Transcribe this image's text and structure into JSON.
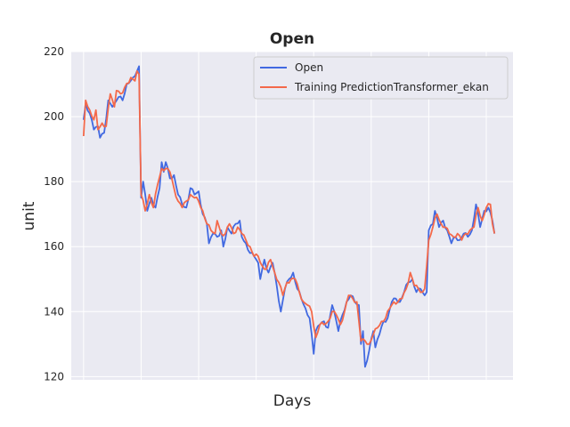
{
  "chart_data": {
    "type": "line",
    "title": "Open",
    "xlabel": "Days",
    "ylabel": "unit",
    "ylim": [
      119,
      220
    ],
    "xlim": [
      -6,
      209
    ],
    "yticks": [
      120,
      140,
      160,
      180,
      200,
      220
    ],
    "ytick_labels": [
      "120",
      "140",
      "160",
      "180",
      "200",
      "220"
    ],
    "xticks": [
      0,
      28,
      56,
      84,
      112,
      140,
      168,
      196
    ],
    "grid": true,
    "legend_position": "upper right",
    "series": [
      {
        "name": "Open",
        "color": "#4169e1",
        "anchors": [
          [
            0,
            199
          ],
          [
            1,
            204
          ],
          [
            3,
            201
          ],
          [
            5,
            196
          ],
          [
            7,
            197
          ],
          [
            8,
            193.5
          ],
          [
            10,
            195
          ],
          [
            12,
            205
          ],
          [
            14,
            203
          ],
          [
            15,
            204
          ],
          [
            17,
            206
          ],
          [
            19,
            205
          ],
          [
            21,
            210
          ],
          [
            24,
            212
          ],
          [
            26,
            214
          ],
          [
            27,
            215.5
          ],
          [
            28,
            175
          ],
          [
            29,
            180
          ],
          [
            31,
            171
          ],
          [
            33,
            175
          ],
          [
            35,
            172
          ],
          [
            37,
            178
          ],
          [
            38,
            186
          ],
          [
            39,
            183
          ],
          [
            40,
            186
          ],
          [
            42,
            181
          ],
          [
            44,
            182
          ],
          [
            46,
            176
          ],
          [
            48,
            173
          ],
          [
            50,
            172
          ],
          [
            52,
            178
          ],
          [
            54,
            176
          ],
          [
            56,
            177
          ],
          [
            58,
            170
          ],
          [
            60,
            167
          ],
          [
            61,
            161
          ],
          [
            63,
            164
          ],
          [
            65,
            163
          ],
          [
            67,
            165
          ],
          [
            68,
            160
          ],
          [
            70,
            166
          ],
          [
            72,
            164
          ],
          [
            74,
            167
          ],
          [
            76,
            168
          ],
          [
            77,
            163
          ],
          [
            79,
            161
          ],
          [
            81,
            158
          ],
          [
            83,
            157
          ],
          [
            85,
            155
          ],
          [
            86,
            150
          ],
          [
            88,
            156
          ],
          [
            90,
            152
          ],
          [
            92,
            155
          ],
          [
            94,
            148
          ],
          [
            96,
            140
          ],
          [
            98,
            147
          ],
          [
            100,
            150
          ],
          [
            102,
            152
          ],
          [
            104,
            147
          ],
          [
            106,
            144
          ],
          [
            108,
            141
          ],
          [
            110,
            138
          ],
          [
            112,
            127
          ],
          [
            113,
            134
          ],
          [
            115,
            136
          ],
          [
            117,
            137
          ],
          [
            119,
            135
          ],
          [
            121,
            142
          ],
          [
            122,
            140
          ],
          [
            124,
            134
          ],
          [
            126,
            139
          ],
          [
            128,
            143
          ],
          [
            130,
            145
          ],
          [
            132,
            143
          ],
          [
            134,
            142
          ],
          [
            135,
            130
          ],
          [
            136,
            134
          ],
          [
            137,
            123
          ],
          [
            139,
            128
          ],
          [
            141,
            134
          ],
          [
            142,
            129
          ],
          [
            144,
            133
          ],
          [
            146,
            137
          ],
          [
            148,
            138
          ],
          [
            150,
            143
          ],
          [
            152,
            144
          ],
          [
            154,
            143
          ],
          [
            156,
            146
          ],
          [
            158,
            149
          ],
          [
            160,
            150
          ],
          [
            162,
            146
          ],
          [
            164,
            147
          ],
          [
            166,
            145
          ],
          [
            167,
            146
          ],
          [
            168,
            165
          ],
          [
            170,
            167
          ],
          [
            171,
            171
          ],
          [
            173,
            166
          ],
          [
            175,
            168
          ],
          [
            177,
            165
          ],
          [
            179,
            161
          ],
          [
            181,
            163
          ],
          [
            183,
            162
          ],
          [
            185,
            164
          ],
          [
            187,
            163
          ],
          [
            189,
            165
          ],
          [
            191,
            173
          ],
          [
            193,
            166
          ],
          [
            195,
            171
          ],
          [
            197,
            172
          ],
          [
            199,
            168
          ],
          [
            200,
            164
          ]
        ]
      },
      {
        "name": "Training PredictionTransformer_ekan",
        "color": "#f4694a",
        "anchors": [
          [
            0,
            194
          ],
          [
            1,
            205
          ],
          [
            3,
            202
          ],
          [
            5,
            199
          ],
          [
            6,
            202
          ],
          [
            7,
            196
          ],
          [
            9,
            198
          ],
          [
            11,
            197
          ],
          [
            13,
            207
          ],
          [
            15,
            203
          ],
          [
            16,
            208
          ],
          [
            18,
            207
          ],
          [
            20,
            209
          ],
          [
            23,
            212
          ],
          [
            25,
            211
          ],
          [
            26,
            214
          ],
          [
            27,
            213
          ],
          [
            28,
            176
          ],
          [
            30,
            171
          ],
          [
            32,
            176
          ],
          [
            34,
            172
          ],
          [
            36,
            179
          ],
          [
            38,
            184
          ],
          [
            40,
            184
          ],
          [
            42,
            183
          ],
          [
            44,
            178
          ],
          [
            46,
            174
          ],
          [
            48,
            172
          ],
          [
            50,
            174
          ],
          [
            52,
            176
          ],
          [
            54,
            175
          ],
          [
            56,
            174
          ],
          [
            58,
            171
          ],
          [
            60,
            167
          ],
          [
            62,
            165
          ],
          [
            64,
            164
          ],
          [
            65,
            168
          ],
          [
            67,
            164
          ],
          [
            69,
            164
          ],
          [
            71,
            167
          ],
          [
            73,
            164
          ],
          [
            75,
            166
          ],
          [
            77,
            164
          ],
          [
            79,
            162
          ],
          [
            81,
            160
          ],
          [
            83,
            157
          ],
          [
            85,
            157
          ],
          [
            87,
            154
          ],
          [
            89,
            153
          ],
          [
            91,
            156
          ],
          [
            93,
            152
          ],
          [
            95,
            149
          ],
          [
            97,
            145
          ],
          [
            99,
            149
          ],
          [
            101,
            150
          ],
          [
            103,
            150
          ],
          [
            105,
            146
          ],
          [
            107,
            143
          ],
          [
            109,
            142
          ],
          [
            111,
            140
          ],
          [
            113,
            132
          ],
          [
            115,
            136
          ],
          [
            117,
            136
          ],
          [
            119,
            137
          ],
          [
            121,
            140
          ],
          [
            123,
            139
          ],
          [
            125,
            136
          ],
          [
            127,
            140
          ],
          [
            129,
            145
          ],
          [
            131,
            144
          ],
          [
            133,
            143
          ],
          [
            135,
            131
          ],
          [
            137,
            131
          ],
          [
            139,
            130
          ],
          [
            141,
            133
          ],
          [
            143,
            135
          ],
          [
            145,
            137
          ],
          [
            147,
            138
          ],
          [
            149,
            141
          ],
          [
            151,
            143
          ],
          [
            153,
            143
          ],
          [
            155,
            144
          ],
          [
            157,
            147
          ],
          [
            159,
            152
          ],
          [
            161,
            148
          ],
          [
            163,
            147
          ],
          [
            165,
            146
          ],
          [
            166,
            147
          ],
          [
            168,
            162
          ],
          [
            170,
            166
          ],
          [
            172,
            170
          ],
          [
            174,
            167
          ],
          [
            176,
            166
          ],
          [
            178,
            164
          ],
          [
            180,
            163
          ],
          [
            182,
            164
          ],
          [
            184,
            162
          ],
          [
            186,
            164
          ],
          [
            188,
            165
          ],
          [
            190,
            166
          ],
          [
            192,
            172
          ],
          [
            194,
            168
          ],
          [
            196,
            172
          ],
          [
            198,
            173
          ],
          [
            199,
            167
          ],
          [
            200,
            164
          ]
        ]
      }
    ]
  }
}
